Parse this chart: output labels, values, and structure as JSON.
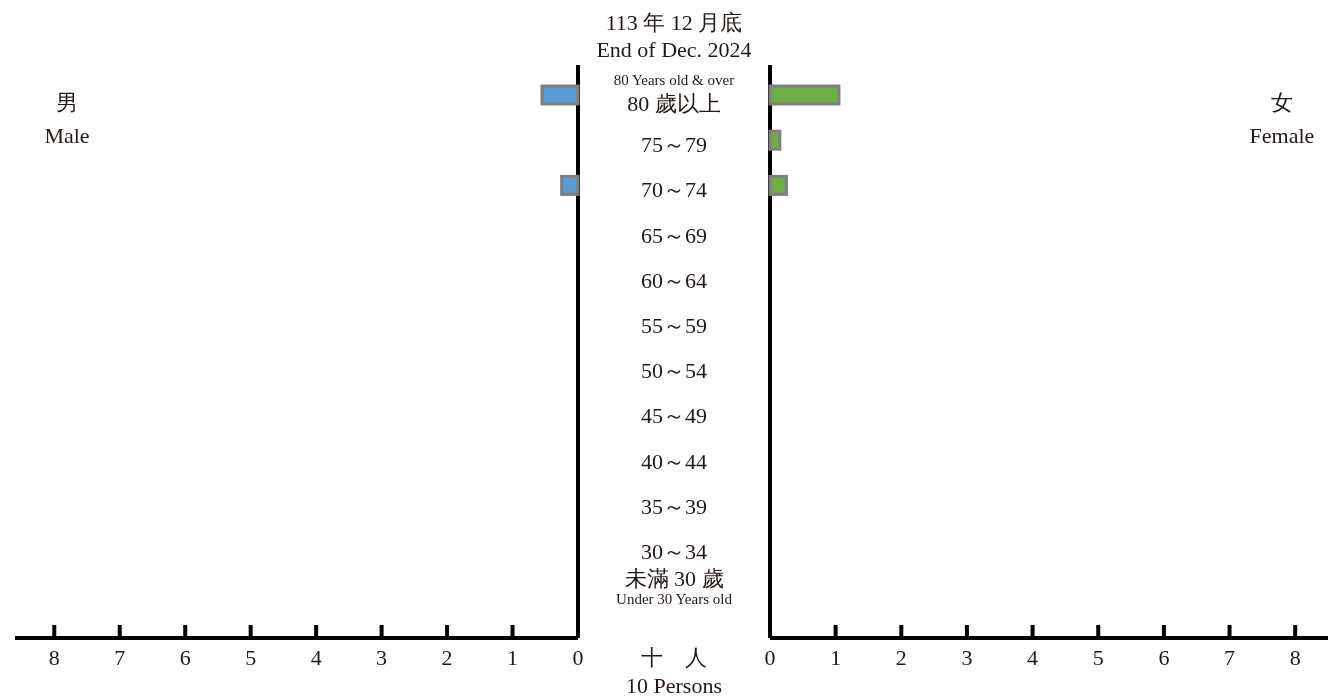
{
  "chart_data": [
    {
      "type": "bar",
      "orientation": "horizontal",
      "subtitle": "113 年 12 月底\nEnd of Dec. 2024",
      "xlabel": "十　人\n10 Persons",
      "annotations": [
        "男\nMale"
      ],
      "categories": [
        "80 Years old & over\n80 歲以上",
        "75～79",
        "70～74",
        "65～69",
        "60～64",
        "55～59",
        "50～54",
        "45～49",
        "40～44",
        "35～39",
        "30～34",
        "未滿 30 歲\nUnder 30 Years old"
      ],
      "series": [
        {
          "color": "#5b9bd5",
          "values": [
            0.55,
            null,
            0.25,
            null,
            null,
            null,
            null,
            null,
            null,
            null,
            null,
            null
          ]
        }
      ],
      "xlim": [
        8.6,
        0
      ],
      "xticks": [
        0,
        1,
        2,
        3,
        4,
        5,
        6,
        7,
        8
      ]
    },
    {
      "type": "bar",
      "orientation": "horizontal",
      "tick_labels": "x",
      "annotations": [
        "女\nFemale"
      ],
      "categories": [
        null,
        null,
        null,
        null,
        null,
        null,
        null,
        null,
        null,
        null,
        null,
        null
      ],
      "series": [
        {
          "color": "#70ad47",
          "values": [
            1.05,
            0.15,
            0.25,
            null,
            null,
            null,
            null,
            null,
            null,
            null,
            null,
            null
          ]
        }
      ],
      "xlim": [
        0,
        8.5
      ],
      "xticks": [
        0,
        1,
        2,
        3,
        4,
        5,
        6,
        7,
        8
      ]
    }
  ]
}
